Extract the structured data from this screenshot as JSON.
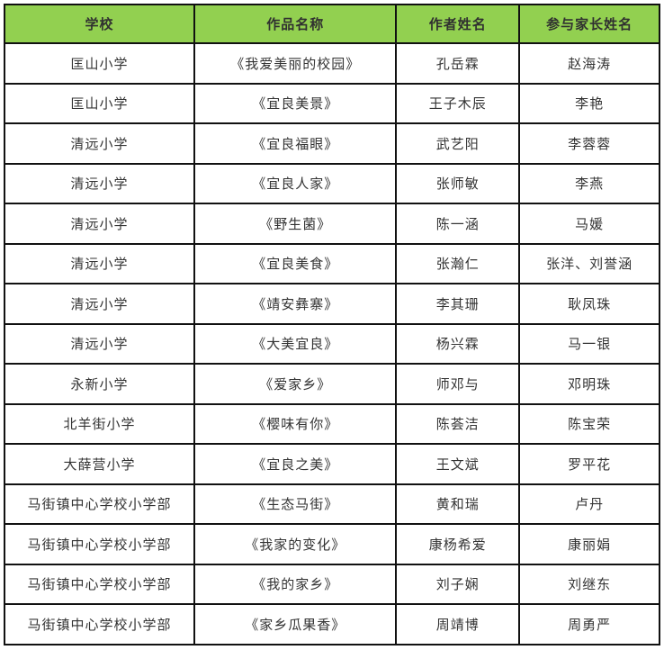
{
  "table": {
    "header_bg": "#92d050",
    "border_color": "#111111",
    "headers": [
      "学校",
      "作品名称",
      "作者姓名",
      "参与家长姓名"
    ],
    "rows": [
      {
        "school": "匡山小学",
        "work": "《我爱美丽的校园》",
        "author": "孔岳霖",
        "parent": "赵海涛"
      },
      {
        "school": "匡山小学",
        "work": "《宜良美景》",
        "author": "王子木辰",
        "parent": "李艳"
      },
      {
        "school": "清远小学",
        "work": "《宜良福眼》",
        "author": "武艺阳",
        "parent": "李蓉蓉"
      },
      {
        "school": "清远小学",
        "work": "《宜良人家》",
        "author": "张师敏",
        "parent": "李燕"
      },
      {
        "school": "清远小学",
        "work": "《野生菌》",
        "author": "陈一涵",
        "parent": "马媛"
      },
      {
        "school": "清远小学",
        "work": "《宜良美食》",
        "author": "张瀚仁",
        "parent": "张洋、刘誉涵"
      },
      {
        "school": "清远小学",
        "work": "《靖安彝寨》",
        "author": "李其珊",
        "parent": "耿凤珠"
      },
      {
        "school": "清远小学",
        "work": "《大美宜良》",
        "author": "杨兴霖",
        "parent": "马一银"
      },
      {
        "school": "永新小学",
        "work": "《爱家乡》",
        "author": "师邓与",
        "parent": "邓明珠"
      },
      {
        "school": "北羊街小学",
        "work": "《樱味有你》",
        "author": "陈荟洁",
        "parent": "陈宝荣"
      },
      {
        "school": "大薛营小学",
        "work": "《宜良之美》",
        "author": "王文斌",
        "parent": "罗平花"
      },
      {
        "school": "马街镇中心学校小学部",
        "work": "《生态马街》",
        "author": "黄和瑞",
        "parent": "卢丹"
      },
      {
        "school": "马街镇中心学校小学部",
        "work": "《我家的变化》",
        "author": "康杨希爱",
        "parent": "康丽娟"
      },
      {
        "school": "马街镇中心学校小学部",
        "work": "《我的家乡》",
        "author": "刘子娴",
        "parent": "刘继东"
      },
      {
        "school": "马街镇中心学校小学部",
        "work": "《家乡瓜果香》",
        "author": "周靖博",
        "parent": "周勇严"
      }
    ]
  }
}
